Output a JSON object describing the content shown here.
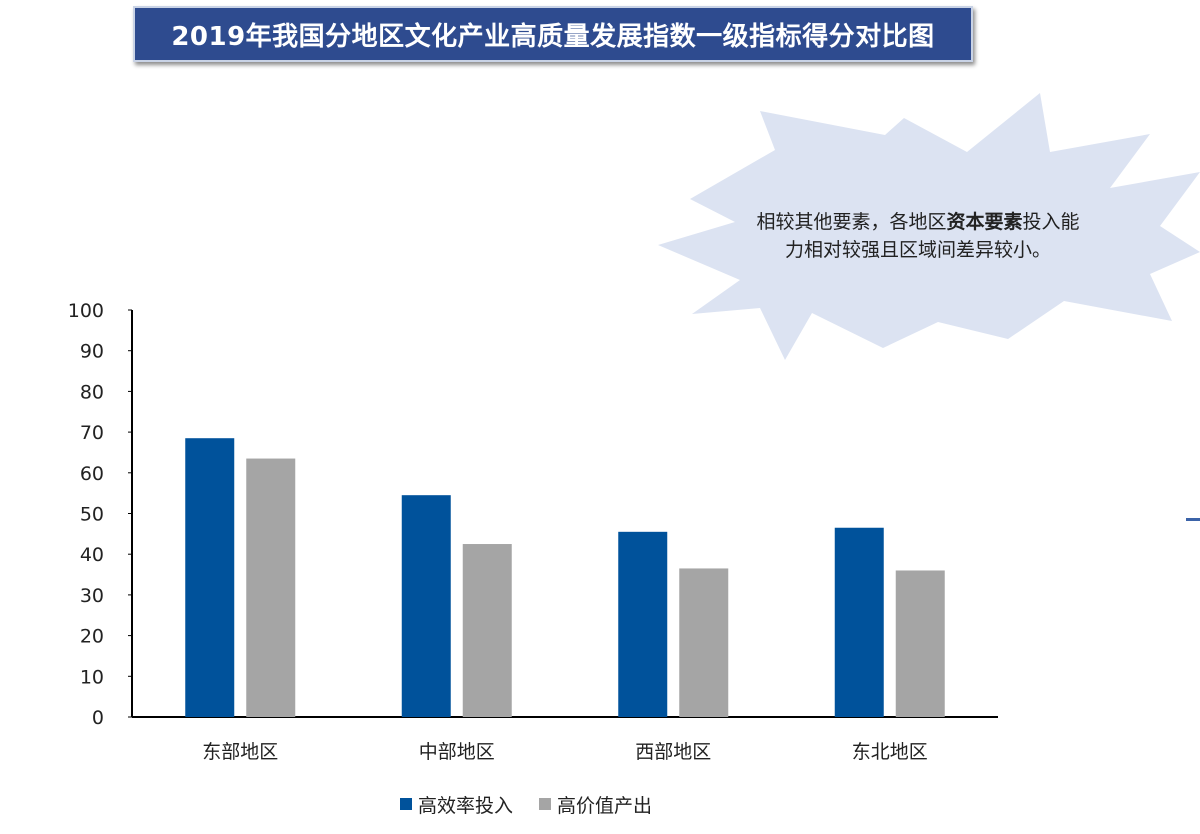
{
  "page_title": "2019年我国分地区文化产业高质量发展指数一级指标得分对比图",
  "callout": {
    "text_before": "相较其他要素，各地区",
    "text_bold": "资本要素",
    "text_after": "投入能力相对较强且区域间差异较小。"
  },
  "colors": {
    "title_bg": "#2e4b8f",
    "series_blue": "#00529b",
    "series_gray": "#a5a5a5",
    "callout_fill": "#dce3f2"
  },
  "chart_data": {
    "type": "bar",
    "categories": [
      "东部地区",
      "中部地区",
      "西部地区",
      "东北地区"
    ],
    "series": [
      {
        "name": "高效率投入",
        "values": [
          68.5,
          54.5,
          45.5,
          46.5
        ],
        "color": "#00529b"
      },
      {
        "name": "高价值产出",
        "values": [
          63.5,
          42.5,
          36.5,
          36.0
        ],
        "color": "#a5a5a5"
      }
    ],
    "yticks": [
      0,
      10,
      20,
      30,
      40,
      50,
      60,
      70,
      80,
      90,
      100
    ],
    "ylim": [
      0,
      100
    ],
    "grid": false,
    "legend_position": "bottom-center"
  }
}
